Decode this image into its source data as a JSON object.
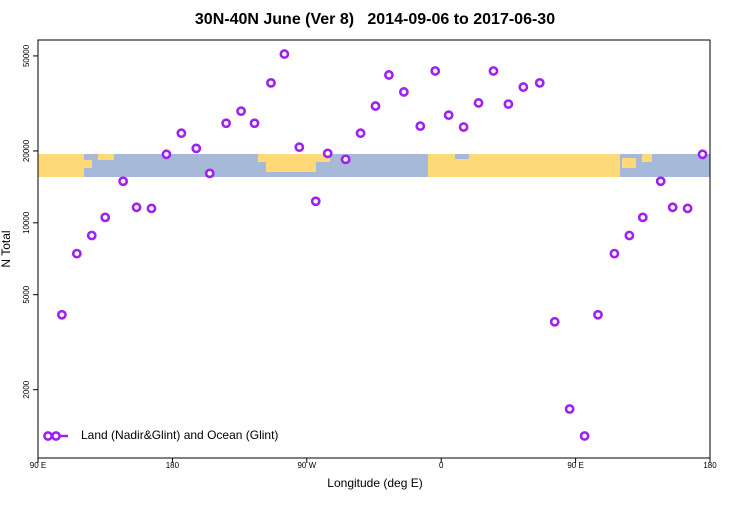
{
  "chart_data": {
    "type": "scatter",
    "title": "30N-40N June (Ver 8)   2014-09-06 to 2017-06-30",
    "x_label": "Longitude (deg E)",
    "y_label": "N Total",
    "x": [
      106,
      116,
      126,
      135,
      147,
      156,
      166,
      176,
      186,
      196,
      205,
      216,
      226,
      235,
      246,
      255,
      265,
      276,
      284,
      296,
      306,
      316,
      325,
      335,
      346,
      356,
      365,
      375,
      385,
      395,
      405,
      415,
      426,
      436,
      446,
      456,
      465,
      476,
      486,
      495,
      507,
      515,
      525,
      535
    ],
    "series": [
      {
        "name": "Land (Nadir&Glint) and Ocean (Glint)",
        "color": "#a020f0",
        "values": [
          4120,
          7430,
          8850,
          10540,
          14930,
          11610,
          11490,
          19360,
          23730,
          20500,
          16110,
          26120,
          29350,
          26120,
          38550,
          50900,
          20740,
          12310,
          19540,
          18440,
          23730,
          30830,
          41620,
          35330,
          25410,
          43250,
          28240,
          25180,
          31780,
          43250,
          31420,
          37030,
          38550,
          3850,
          1660,
          1280,
          4120,
          7430,
          8850,
          10540,
          14930,
          11610,
          11490,
          19360
        ]
      }
    ],
    "xlim": [
      90,
      540
    ],
    "xticks": [
      {
        "value": 90,
        "label": "90 E"
      },
      {
        "value": 180,
        "label": "180"
      },
      {
        "value": 270,
        "label": "90 W"
      },
      {
        "value": 360,
        "label": "0"
      },
      {
        "value": 450,
        "label": "90 E"
      },
      {
        "value": 540,
        "label": "180"
      }
    ],
    "ylim": [
      1035,
      58300
    ],
    "yticks": [
      2000,
      5000,
      10000,
      20000,
      50000
    ],
    "ylog": true,
    "legend": "bottom-left"
  }
}
